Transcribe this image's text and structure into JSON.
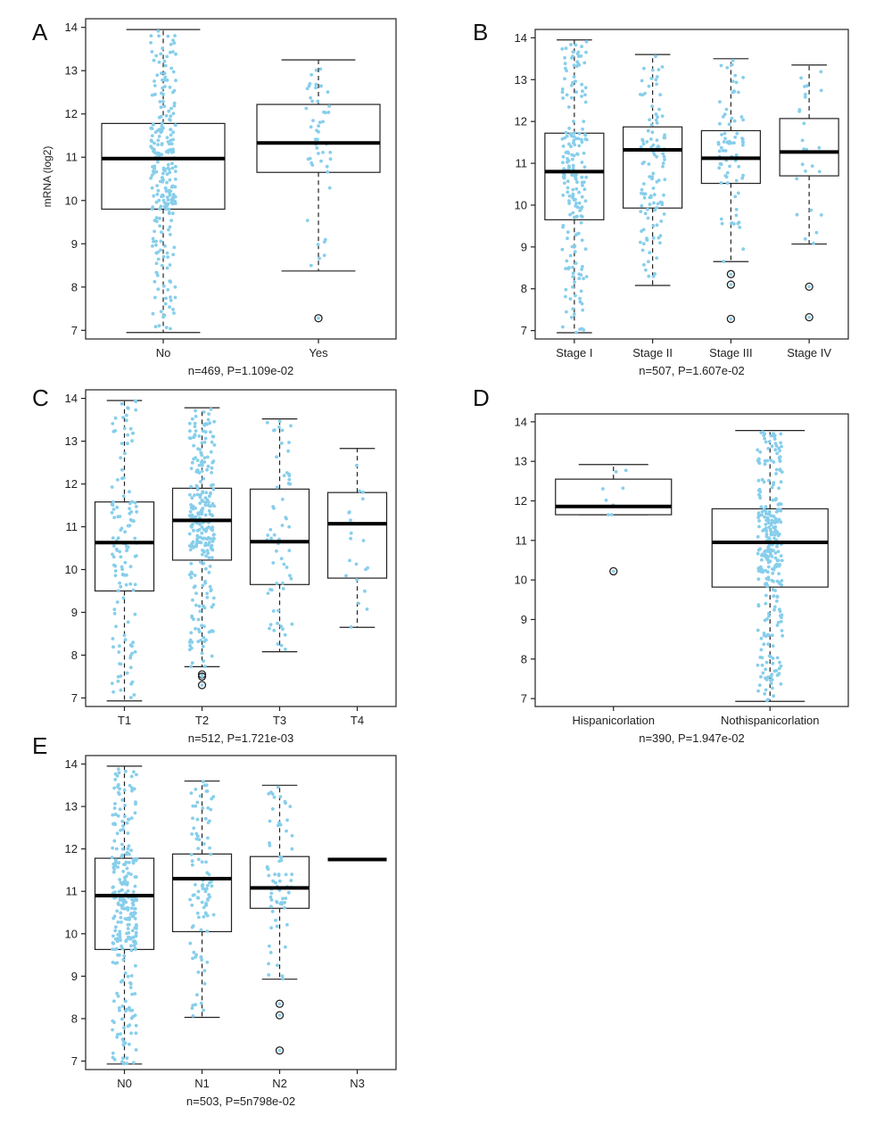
{
  "chart_data": [
    {
      "type": "box",
      "panel": "A",
      "ylabel": "mRNA (log2)",
      "ylim": [
        6.8,
        14.2
      ],
      "yticks": [
        7,
        8,
        9,
        10,
        11,
        12,
        13,
        14
      ],
      "caption": "n=469, P=1.109e-02",
      "point_color": "#87CEEB",
      "groups": [
        {
          "label": "No",
          "min": 6.95,
          "q1": 9.8,
          "median": 10.97,
          "q3": 11.78,
          "max": 13.95,
          "outliers": [],
          "n_points": 260
        },
        {
          "label": "Yes",
          "min": 8.37,
          "q1": 10.65,
          "median": 11.33,
          "q3": 12.22,
          "max": 13.25,
          "outliers": [
            7.28
          ],
          "n_points": 50
        }
      ]
    },
    {
      "type": "box",
      "panel": "B",
      "ylabel": "",
      "ylim": [
        6.8,
        14.2
      ],
      "yticks": [
        7,
        8,
        9,
        10,
        11,
        12,
        13,
        14
      ],
      "caption": "n=507, P=1.607e-02",
      "point_color": "#87CEEB",
      "groups": [
        {
          "label": "Stage I",
          "min": 6.95,
          "q1": 9.65,
          "median": 10.8,
          "q3": 11.72,
          "max": 13.95,
          "outliers": [],
          "n_points": 200
        },
        {
          "label": "Stage II",
          "min": 8.08,
          "q1": 9.93,
          "median": 11.32,
          "q3": 11.87,
          "max": 13.6,
          "outliers": [],
          "n_points": 110
        },
        {
          "label": "Stage III",
          "min": 8.65,
          "q1": 10.52,
          "median": 11.12,
          "q3": 11.78,
          "max": 13.5,
          "outliers": [
            8.35,
            8.1,
            7.28
          ],
          "n_points": 80
        },
        {
          "label": "Stage IV",
          "min": 9.07,
          "q1": 10.7,
          "median": 11.27,
          "q3": 12.07,
          "max": 13.35,
          "outliers": [
            8.05,
            7.32
          ],
          "n_points": 25
        }
      ]
    },
    {
      "type": "box",
      "panel": "C",
      "ylabel": "",
      "ylim": [
        6.8,
        14.2
      ],
      "yticks": [
        7,
        8,
        9,
        10,
        11,
        12,
        13,
        14
      ],
      "caption": "n=512, P=1.721e-03",
      "point_color": "#87CEEB",
      "groups": [
        {
          "label": "T1",
          "min": 6.93,
          "q1": 9.5,
          "median": 10.63,
          "q3": 11.58,
          "max": 13.95,
          "outliers": [],
          "n_points": 130
        },
        {
          "label": "T2",
          "min": 7.73,
          "q1": 10.22,
          "median": 11.15,
          "q3": 11.9,
          "max": 13.78,
          "outliers": [
            7.55,
            7.5,
            7.3
          ],
          "n_points": 270
        },
        {
          "label": "T3",
          "min": 8.08,
          "q1": 9.65,
          "median": 10.65,
          "q3": 11.88,
          "max": 13.52,
          "outliers": [],
          "n_points": 60
        },
        {
          "label": "T4",
          "min": 8.65,
          "q1": 9.8,
          "median": 11.07,
          "q3": 11.8,
          "max": 12.83,
          "outliers": [],
          "n_points": 20
        }
      ]
    },
    {
      "type": "box",
      "panel": "D",
      "ylabel": "",
      "ylim": [
        6.8,
        14.2
      ],
      "yticks": [
        7,
        8,
        9,
        10,
        11,
        12,
        13,
        14
      ],
      "caption": "n=390, P=1.947e-02",
      "point_color": "#87CEEB",
      "groups": [
        {
          "label": "Hispanicorlation",
          "min": 11.65,
          "q1": 11.65,
          "median": 11.86,
          "q3": 12.55,
          "max": 12.92,
          "outliers": [
            10.22
          ],
          "n_points": 8
        },
        {
          "label": "Nothispanicorlation",
          "min": 6.93,
          "q1": 9.82,
          "median": 10.95,
          "q3": 11.8,
          "max": 13.78,
          "outliers": [],
          "n_points": 300
        }
      ]
    },
    {
      "type": "box",
      "panel": "E",
      "ylabel": "",
      "ylim": [
        6.8,
        14.2
      ],
      "yticks": [
        7,
        8,
        9,
        10,
        11,
        12,
        13,
        14
      ],
      "caption": "n=503, P=5n798e-02",
      "point_color": "#87CEEB",
      "groups": [
        {
          "label": "N0",
          "min": 6.93,
          "q1": 9.63,
          "median": 10.9,
          "q3": 11.78,
          "max": 13.95,
          "outliers": [],
          "n_points": 280
        },
        {
          "label": "N1",
          "min": 8.03,
          "q1": 10.05,
          "median": 11.3,
          "q3": 11.88,
          "max": 13.6,
          "outliers": [],
          "n_points": 100
        },
        {
          "label": "N2",
          "min": 8.93,
          "q1": 10.6,
          "median": 11.08,
          "q3": 11.82,
          "max": 13.5,
          "outliers": [
            8.35,
            8.08,
            7.25
          ],
          "n_points": 70
        },
        {
          "label": "N3",
          "min": 11.75,
          "q1": 11.75,
          "median": 11.75,
          "q3": 11.75,
          "max": 11.75,
          "outliers": [],
          "n_points": 1
        }
      ]
    }
  ]
}
